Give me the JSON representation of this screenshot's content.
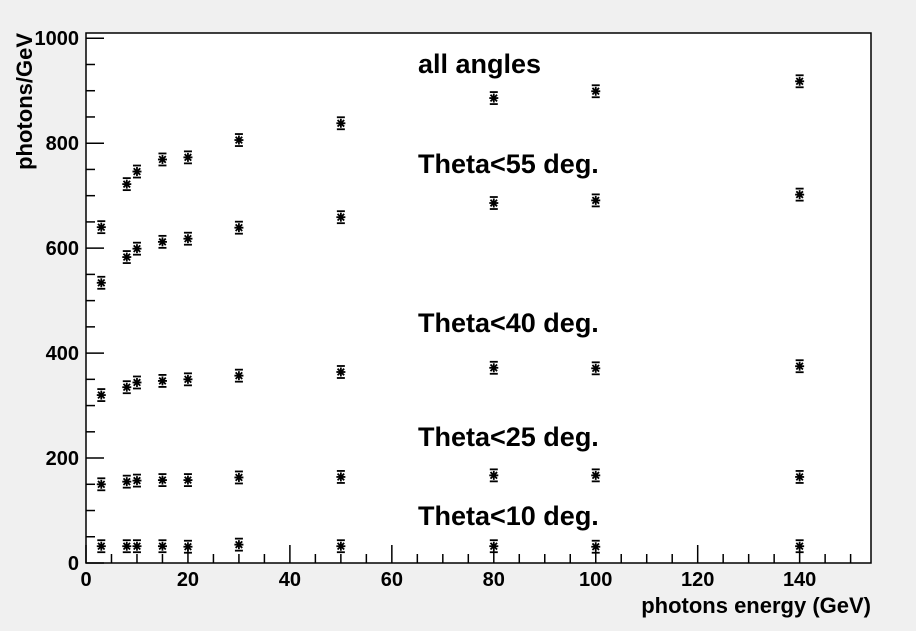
{
  "chart_data": {
    "type": "scatter",
    "title": "",
    "xlabel": "photons energy (GeV)",
    "ylabel": "photons/GeV",
    "xlim": [
      0,
      154
    ],
    "ylim": [
      0,
      1010
    ],
    "xticks": [
      0,
      20,
      40,
      60,
      80,
      100,
      120,
      140
    ],
    "yticks": [
      0,
      200,
      400,
      600,
      800,
      1000
    ],
    "grid": false,
    "legend": "none",
    "marker_color": "#000000",
    "background": "#ffffff",
    "x": [
      3,
      8,
      10,
      15,
      20,
      30,
      50,
      80,
      100,
      140
    ],
    "series": [
      {
        "label": "all angles",
        "values": [
          640,
          722,
          746,
          769,
          773,
          806,
          838,
          886,
          899,
          918
        ]
      },
      {
        "label": "Theta<55 deg.",
        "values": [
          534,
          583,
          599,
          612,
          618,
          639,
          659,
          686,
          691,
          702
        ]
      },
      {
        "label": "Theta<40 deg.",
        "values": [
          320,
          335,
          344,
          347,
          350,
          357,
          364,
          372,
          371,
          375
        ]
      },
      {
        "label": "Theta<25 deg.",
        "values": [
          150,
          155,
          157,
          158,
          158,
          163,
          164,
          167,
          167,
          164
        ]
      },
      {
        "label": "Theta<10 deg.",
        "values": [
          32,
          32,
          32,
          32,
          31,
          35,
          32,
          32,
          31,
          32
        ]
      }
    ]
  }
}
